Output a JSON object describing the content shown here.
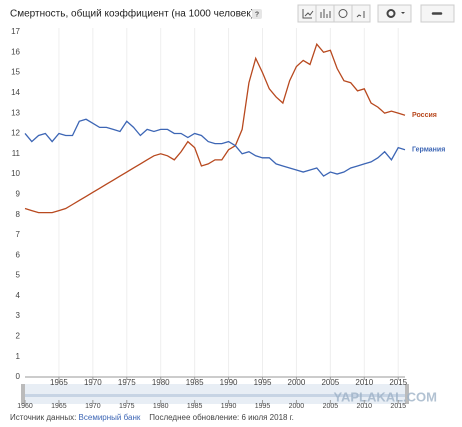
{
  "chart_data": {
    "type": "line",
    "title": "Смертность, общий коэффициент (на 1000 человек)",
    "help": "?",
    "x": [
      1960,
      1961,
      1962,
      1963,
      1964,
      1965,
      1966,
      1967,
      1968,
      1969,
      1970,
      1971,
      1972,
      1973,
      1974,
      1975,
      1976,
      1977,
      1978,
      1979,
      1980,
      1981,
      1982,
      1983,
      1984,
      1985,
      1986,
      1987,
      1988,
      1989,
      1990,
      1991,
      1992,
      1993,
      1994,
      1995,
      1996,
      1997,
      1998,
      1999,
      2000,
      2001,
      2002,
      2003,
      2004,
      2005,
      2006,
      2007,
      2008,
      2009,
      2010,
      2011,
      2012,
      2013,
      2014,
      2015,
      2016
    ],
    "series": [
      {
        "name": "Россия",
        "color": "#b8491f",
        "values": [
          8.3,
          8.2,
          8.1,
          8.1,
          8.1,
          8.2,
          8.3,
          8.5,
          8.7,
          8.9,
          9.1,
          9.3,
          9.5,
          9.7,
          9.9,
          10.1,
          10.3,
          10.5,
          10.7,
          10.9,
          11.0,
          10.9,
          10.7,
          11.1,
          11.6,
          11.3,
          10.4,
          10.5,
          10.7,
          10.7,
          11.2,
          11.4,
          12.2,
          14.5,
          15.7,
          15.0,
          14.2,
          13.8,
          13.5,
          14.6,
          15.3,
          15.6,
          15.4,
          16.4,
          16.0,
          16.1,
          15.2,
          14.6,
          14.5,
          14.1,
          14.2,
          13.5,
          13.3,
          13.0,
          13.1,
          13.0,
          12.9
        ]
      },
      {
        "name": "Германия",
        "color": "#3d66b5",
        "values": [
          12.0,
          11.6,
          11.9,
          12.0,
          11.6,
          12.0,
          11.9,
          11.9,
          12.6,
          12.7,
          12.5,
          12.3,
          12.3,
          12.2,
          12.1,
          12.6,
          12.3,
          11.9,
          12.2,
          12.1,
          12.2,
          12.2,
          12.0,
          12.0,
          11.8,
          12.0,
          11.9,
          11.6,
          11.5,
          11.5,
          11.6,
          11.4,
          11.0,
          11.1,
          10.9,
          10.8,
          10.8,
          10.5,
          10.4,
          10.3,
          10.2,
          10.1,
          10.2,
          10.3,
          9.9,
          10.1,
          10.0,
          10.1,
          10.3,
          10.4,
          10.5,
          10.6,
          10.8,
          11.1,
          10.7,
          11.3,
          11.2
        ]
      }
    ],
    "xlim": [
      1960,
      2016
    ],
    "xticks": [
      1965,
      1970,
      1975,
      1980,
      1985,
      1990,
      1995,
      2000,
      2005,
      2010,
      2015
    ],
    "ylim": [
      0,
      17
    ],
    "yticks": [
      0,
      1,
      2,
      3,
      4,
      5,
      6,
      7,
      8,
      9,
      10,
      11,
      12,
      13,
      14,
      15,
      16,
      17
    ],
    "grid": "x",
    "timeline_ticks": [
      1960,
      1965,
      1970,
      1975,
      1980,
      1985,
      1990,
      1995,
      2000,
      2005,
      2010,
      2015
    ]
  },
  "footer": {
    "source_label": "Источник данных:",
    "source": "Всемирный банк",
    "updated": "Последнее обновление: 6 июля 2018 г."
  },
  "watermark": "YAPLAKAL.COM"
}
